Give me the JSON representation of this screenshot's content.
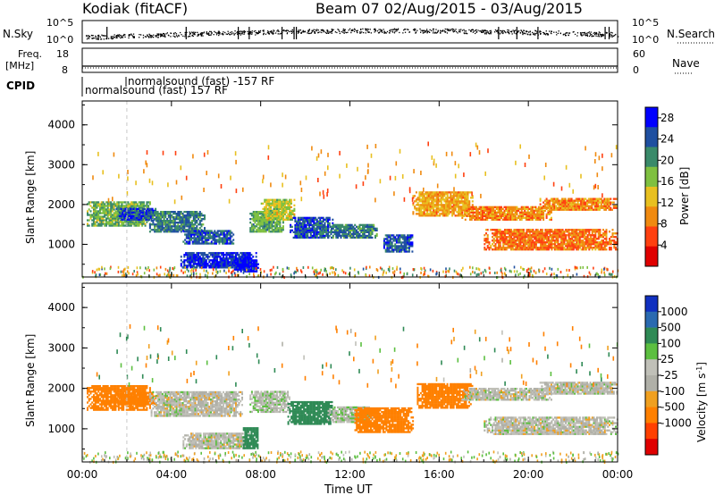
{
  "header": {
    "station": "Kodiak (fitACF)",
    "beam_and_dates": "Beam 07  02/Aug/2015 - 03/Aug/2015"
  },
  "noise_panel": {
    "left_label": "N.Sky",
    "right_label": "N.Search",
    "left_ticks": [
      "10^5",
      "10^0"
    ],
    "right_ticks": [
      "10^5",
      "10^0"
    ]
  },
  "freq_panel": {
    "left_label_line1": "Freq.",
    "left_label_line2": "[MHz]",
    "left_ticks": [
      "18",
      "8"
    ],
    "right_label": "Nave",
    "right_ticks": [
      "60",
      "0"
    ]
  },
  "cpid_panel": {
    "label": "CPID",
    "modes": [
      "normalsound (fast) -157 RF",
      "normalsound (fast) 157 RF"
    ]
  },
  "colors": {
    "power_scale": [
      "#0000ff",
      "#1f4fa0",
      "#3a8a6a",
      "#7fc040",
      "#e8c020",
      "#f08a10",
      "#ff4010",
      "#e00000"
    ],
    "velocity_scale": [
      "#1030c0",
      "#2a6ab0",
      "#2f8a55",
      "#5cbf40",
      "#c0c0b8",
      "#b0b0a8",
      "#f0a020",
      "#ff8000",
      "#ff4000",
      "#e00000"
    ]
  },
  "chart_data": [
    {
      "type": "heatmap",
      "title": "",
      "xlabel": "Time UT",
      "ylabel": "Slant Range [km]",
      "x_ticks": [
        "00:00",
        "04:00",
        "08:00",
        "12:00",
        "16:00",
        "20:00",
        "00:00"
      ],
      "y_ticks": [
        "1000",
        "2000",
        "3000",
        "4000"
      ],
      "xlim_hours": [
        0,
        24
      ],
      "ylim_km": [
        180,
        4600
      ],
      "colorbar": {
        "label": "Power [dB]",
        "ticks": [
          "4",
          "8",
          "12",
          "16",
          "20",
          "24",
          "28"
        ],
        "range": [
          0,
          30
        ]
      },
      "echo_regions": [
        {
          "t0": 0.2,
          "t1": 3.0,
          "r0": 1450,
          "r1": 2050,
          "value": 18
        },
        {
          "t0": 1.5,
          "t1": 3.3,
          "r0": 1600,
          "r1": 1900,
          "value": 25
        },
        {
          "t0": 3.0,
          "t1": 5.5,
          "r0": 1300,
          "r1": 1800,
          "value": 22
        },
        {
          "t0": 4.5,
          "t1": 6.8,
          "r0": 1000,
          "r1": 1350,
          "value": 24
        },
        {
          "t0": 4.4,
          "t1": 7.8,
          "r0": 400,
          "r1": 800,
          "value": 27
        },
        {
          "t0": 6.8,
          "t1": 7.9,
          "r0": 300,
          "r1": 600,
          "value": 29
        },
        {
          "t0": 7.5,
          "t1": 9.0,
          "r0": 1300,
          "r1": 1800,
          "value": 19
        },
        {
          "t0": 8.0,
          "t1": 9.5,
          "r0": 1600,
          "r1": 2100,
          "value": 15
        },
        {
          "t0": 9.3,
          "t1": 11.2,
          "r0": 1150,
          "r1": 1650,
          "value": 24
        },
        {
          "t0": 11.0,
          "t1": 13.2,
          "r0": 1150,
          "r1": 1500,
          "value": 22
        },
        {
          "t0": 13.5,
          "t1": 14.8,
          "r0": 800,
          "r1": 1250,
          "value": 24
        },
        {
          "t0": 14.8,
          "t1": 17.5,
          "r0": 1700,
          "r1": 2300,
          "value": 11
        },
        {
          "t0": 17.0,
          "t1": 21.0,
          "r0": 1600,
          "r1": 1950,
          "value": 9
        },
        {
          "t0": 18.0,
          "t1": 24.0,
          "r0": 850,
          "r1": 1350,
          "value": 8
        },
        {
          "t0": 20.5,
          "t1": 24.0,
          "r0": 1850,
          "r1": 2150,
          "value": 9
        }
      ]
    },
    {
      "type": "heatmap",
      "title": "",
      "xlabel": "Time UT",
      "ylabel": "Slant Range [km]",
      "x_ticks": [
        "00:00",
        "04:00",
        "08:00",
        "12:00",
        "16:00",
        "20:00",
        "00:00"
      ],
      "y_ticks": [
        "1000",
        "2000",
        "3000",
        "4000"
      ],
      "xlim_hours": [
        0,
        24
      ],
      "ylim_km": [
        180,
        4600
      ],
      "colorbar": {
        "label": "Velocity [m s^-1]",
        "ticks": [
          "1000",
          "500",
          "100",
          "25",
          "-25",
          "-100",
          "-500",
          "-1000"
        ],
        "range": [
          -1000,
          1000
        ]
      },
      "echo_regions": [
        {
          "t0": 0.2,
          "t1": 3.0,
          "r0": 1450,
          "r1": 2050,
          "value": -150
        },
        {
          "t0": 1.5,
          "t1": 3.3,
          "r0": 1600,
          "r1": 1900,
          "value": -300
        },
        {
          "t0": 3.0,
          "t1": 7.2,
          "r0": 1300,
          "r1": 1900,
          "value": 0
        },
        {
          "t0": 4.5,
          "t1": 7.5,
          "r0": 500,
          "r1": 900,
          "value": 0
        },
        {
          "t0": 7.2,
          "t1": 7.9,
          "r0": 500,
          "r1": 1000,
          "value": 150
        },
        {
          "t0": 7.5,
          "t1": 9.3,
          "r0": 1400,
          "r1": 1900,
          "value": 10
        },
        {
          "t0": 9.2,
          "t1": 11.2,
          "r0": 1100,
          "r1": 1650,
          "value": 250
        },
        {
          "t0": 11.0,
          "t1": 13.0,
          "r0": 1150,
          "r1": 1550,
          "value": 10
        },
        {
          "t0": 12.2,
          "t1": 14.8,
          "r0": 900,
          "r1": 1500,
          "value": -250
        },
        {
          "t0": 15.0,
          "t1": 17.5,
          "r0": 1500,
          "r1": 2100,
          "value": -300
        },
        {
          "t0": 17.0,
          "t1": 21.0,
          "r0": 1700,
          "r1": 2000,
          "value": 0
        },
        {
          "t0": 18.0,
          "t1": 24.0,
          "r0": 850,
          "r1": 1300,
          "value": 0
        },
        {
          "t0": 20.5,
          "t1": 24.0,
          "r0": 1850,
          "r1": 2150,
          "value": 0
        }
      ]
    }
  ]
}
